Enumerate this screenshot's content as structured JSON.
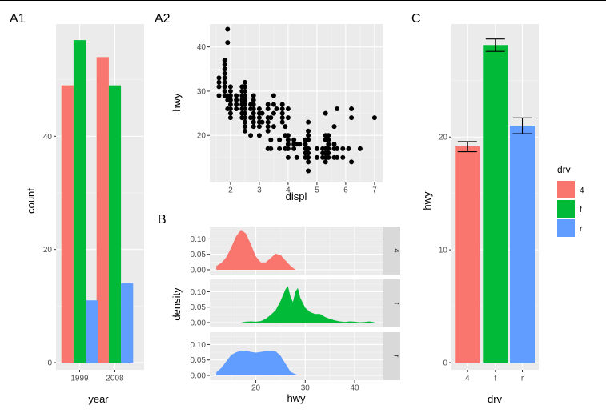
{
  "tags": {
    "a1": "A1",
    "a2": "A2",
    "b": "B",
    "c": "C"
  },
  "colors": {
    "4": "#F8766D",
    "f": "#00BA38",
    "r": "#619CFF",
    "points": "#000000",
    "panel": "#EBEBEB"
  },
  "chart_data": [
    {
      "id": "A1",
      "type": "bar",
      "position": "dodge",
      "xlabel": "year",
      "ylabel": "count",
      "categories": [
        "1999",
        "2008"
      ],
      "series": [
        {
          "key": "4",
          "values": [
            49,
            54
          ]
        },
        {
          "key": "f",
          "values": [
            57,
            49
          ]
        },
        {
          "key": "r",
          "values": [
            11,
            14
          ]
        }
      ],
      "yticks": [
        0,
        20,
        40
      ],
      "ylim": [
        0,
        59
      ],
      "grid": true
    },
    {
      "id": "A2",
      "type": "scatter",
      "xlabel": "displ",
      "ylabel": "hwy",
      "xticks": [
        2,
        3,
        4,
        5,
        6,
        7
      ],
      "yticks": [
        20,
        30,
        40
      ],
      "xlim": [
        1.4,
        7.2
      ],
      "ylim": [
        11,
        45
      ],
      "grid": true,
      "points": [
        [
          1.6,
          29
        ],
        [
          1.6,
          31
        ],
        [
          1.6,
          32
        ],
        [
          1.6,
          33
        ],
        [
          1.8,
          29
        ],
        [
          1.8,
          30
        ],
        [
          1.8,
          31
        ],
        [
          1.8,
          32
        ],
        [
          1.8,
          33
        ],
        [
          1.8,
          34
        ],
        [
          1.8,
          35
        ],
        [
          1.8,
          36
        ],
        [
          1.8,
          37
        ],
        [
          1.9,
          41
        ],
        [
          1.9,
          44
        ],
        [
          1.9,
          26
        ],
        [
          1.9,
          28
        ],
        [
          1.9,
          29
        ],
        [
          2.0,
          25
        ],
        [
          2.0,
          26
        ],
        [
          2.0,
          27
        ],
        [
          2.0,
          28
        ],
        [
          2.0,
          29
        ],
        [
          2.0,
          30
        ],
        [
          2.0,
          31
        ],
        [
          2.2,
          26
        ],
        [
          2.2,
          27
        ],
        [
          2.2,
          28
        ],
        [
          2.2,
          29
        ],
        [
          2.4,
          24
        ],
        [
          2.4,
          25
        ],
        [
          2.4,
          26
        ],
        [
          2.4,
          27
        ],
        [
          2.4,
          28
        ],
        [
          2.4,
          29
        ],
        [
          2.4,
          30
        ],
        [
          2.4,
          31
        ],
        [
          2.5,
          21
        ],
        [
          2.5,
          22
        ],
        [
          2.5,
          23
        ],
        [
          2.5,
          24
        ],
        [
          2.5,
          25
        ],
        [
          2.5,
          26
        ],
        [
          2.5,
          27
        ],
        [
          2.5,
          28
        ],
        [
          2.5,
          29
        ],
        [
          2.5,
          30
        ],
        [
          2.5,
          31
        ],
        [
          2.5,
          32
        ],
        [
          2.7,
          20
        ],
        [
          2.7,
          24
        ],
        [
          2.7,
          26
        ],
        [
          2.7,
          27
        ],
        [
          2.8,
          22
        ],
        [
          2.8,
          23
        ],
        [
          2.8,
          24
        ],
        [
          2.8,
          25
        ],
        [
          2.8,
          26
        ],
        [
          2.8,
          27
        ],
        [
          2.8,
          28
        ],
        [
          2.8,
          29
        ],
        [
          3.0,
          20
        ],
        [
          3.0,
          22
        ],
        [
          3.0,
          24
        ],
        [
          3.0,
          25
        ],
        [
          3.0,
          26
        ],
        [
          3.1,
          23
        ],
        [
          3.1,
          25
        ],
        [
          3.3,
          17
        ],
        [
          3.3,
          21
        ],
        [
          3.3,
          22
        ],
        [
          3.3,
          23
        ],
        [
          3.3,
          24
        ],
        [
          3.3,
          26
        ],
        [
          3.3,
          27
        ],
        [
          3.4,
          17
        ],
        [
          3.4,
          19
        ],
        [
          3.4,
          24
        ],
        [
          3.5,
          22
        ],
        [
          3.5,
          25
        ],
        [
          3.5,
          27
        ],
        [
          3.5,
          29
        ],
        [
          3.6,
          26
        ],
        [
          3.7,
          17
        ],
        [
          3.7,
          19
        ],
        [
          3.8,
          23
        ],
        [
          3.8,
          24
        ],
        [
          3.8,
          25
        ],
        [
          3.8,
          26
        ],
        [
          3.8,
          27
        ],
        [
          3.9,
          17
        ],
        [
          3.9,
          20
        ],
        [
          3.9,
          22
        ],
        [
          4.0,
          17
        ],
        [
          4.0,
          18
        ],
        [
          4.0,
          19
        ],
        [
          4.0,
          20
        ],
        [
          4.0,
          24
        ],
        [
          4.0,
          26
        ],
        [
          4.2,
          17
        ],
        [
          4.2,
          18
        ],
        [
          4.6,
          15
        ],
        [
          4.6,
          16
        ],
        [
          4.6,
          17
        ],
        [
          4.6,
          18
        ],
        [
          4.7,
          12
        ],
        [
          4.7,
          14
        ],
        [
          4.7,
          15
        ],
        [
          4.7,
          16
        ],
        [
          4.7,
          17
        ],
        [
          4.7,
          19
        ],
        [
          4.7,
          20
        ],
        [
          4.7,
          21
        ],
        [
          4.7,
          23
        ],
        [
          5.0,
          17
        ],
        [
          5.2,
          15
        ],
        [
          5.2,
          16
        ],
        [
          5.2,
          17
        ],
        [
          5.3,
          14
        ],
        [
          5.3,
          15
        ],
        [
          5.3,
          16
        ],
        [
          5.3,
          17
        ],
        [
          5.3,
          19
        ],
        [
          5.3,
          20
        ],
        [
          5.3,
          25
        ],
        [
          5.4,
          15
        ],
        [
          5.4,
          16
        ],
        [
          5.4,
          17
        ],
        [
          5.4,
          18
        ],
        [
          5.4,
          19
        ],
        [
          5.4,
          20
        ],
        [
          5.6,
          15
        ],
        [
          5.6,
          17
        ],
        [
          5.6,
          18
        ],
        [
          5.6,
          22
        ],
        [
          5.7,
          15
        ],
        [
          5.7,
          17
        ],
        [
          5.7,
          26
        ],
        [
          5.9,
          15
        ],
        [
          5.9,
          17
        ],
        [
          6.1,
          17
        ],
        [
          6.2,
          14
        ],
        [
          6.2,
          24
        ],
        [
          6.2,
          26
        ],
        [
          6.5,
          17
        ],
        [
          7.0,
          24
        ],
        [
          4.4,
          18
        ],
        [
          4.3,
          18
        ],
        [
          4.3,
          15
        ],
        [
          4.2,
          19
        ],
        [
          3.0,
          23
        ],
        [
          2.8,
          23
        ],
        [
          2.0,
          24
        ],
        [
          2.4,
          27
        ],
        [
          4.0,
          15
        ],
        [
          4.6,
          19
        ],
        [
          5.4,
          17
        ],
        [
          5.0,
          15
        ]
      ]
    },
    {
      "id": "B",
      "type": "area",
      "chart_kind": "density",
      "xlabel": "hwy",
      "ylabel": "density",
      "xticks": [
        20,
        30,
        40
      ],
      "yticks": [
        0.0,
        0.05,
        0.1
      ],
      "ytick_labels": [
        "0.00",
        "0.05",
        "0.10"
      ],
      "xlim": [
        11,
        45.5
      ],
      "ylim": [
        0,
        0.14
      ],
      "facets": [
        {
          "strip": "4",
          "key": "4",
          "x_range": [
            12,
            28
          ],
          "x": [
            12,
            13,
            14,
            15,
            16,
            17,
            18,
            19,
            20,
            21,
            22,
            23,
            24,
            25,
            26,
            27,
            28
          ],
          "y": [
            0.012,
            0.022,
            0.04,
            0.072,
            0.108,
            0.13,
            0.117,
            0.082,
            0.043,
            0.024,
            0.024,
            0.038,
            0.052,
            0.048,
            0.03,
            0.013,
            0.0
          ]
        },
        {
          "strip": "f",
          "key": "f",
          "x_range": [
            17,
            44
          ],
          "x": [
            17,
            18,
            19,
            20,
            21,
            22,
            23,
            24,
            25,
            26,
            26.5,
            27,
            27.5,
            28,
            28.5,
            29,
            30,
            31,
            32,
            33,
            34,
            35,
            36,
            37,
            38,
            39,
            40,
            41,
            42,
            43,
            44
          ],
          "y": [
            0.0,
            0.003,
            0.004,
            0.003,
            0.005,
            0.012,
            0.025,
            0.04,
            0.07,
            0.108,
            0.118,
            0.085,
            0.066,
            0.1,
            0.112,
            0.08,
            0.048,
            0.034,
            0.028,
            0.028,
            0.018,
            0.012,
            0.007,
            0.004,
            0.002,
            0.004,
            0.003,
            0.001,
            0.002,
            0.004,
            0.001
          ]
        },
        {
          "strip": "r",
          "key": "r",
          "x_range": [
            12,
            29
          ],
          "x": [
            12,
            13,
            14,
            15,
            16,
            17,
            18,
            19,
            20,
            21,
            22,
            23,
            24,
            25,
            26,
            27,
            28,
            29
          ],
          "y": [
            0.01,
            0.024,
            0.045,
            0.066,
            0.075,
            0.08,
            0.08,
            0.076,
            0.074,
            0.076,
            0.079,
            0.08,
            0.078,
            0.064,
            0.038,
            0.012,
            0.004,
            0.0
          ]
        }
      ],
      "grid": true
    },
    {
      "id": "C",
      "type": "bar",
      "stat": "mean",
      "error_bars": true,
      "xlabel": "drv",
      "ylabel": "hwy",
      "categories": [
        "4",
        "f",
        "r"
      ],
      "values": [
        19.17,
        28.16,
        21.0
      ],
      "error": [
        [
          18.7,
          19.6
        ],
        [
          27.6,
          28.7
        ],
        [
          20.3,
          21.7
        ]
      ],
      "yticks": [
        0,
        10,
        20
      ],
      "ylim": [
        0,
        29.6
      ],
      "grid": true,
      "legend": {
        "title": "drv",
        "placement": "right",
        "entries": [
          "4",
          "f",
          "r"
        ]
      }
    }
  ]
}
